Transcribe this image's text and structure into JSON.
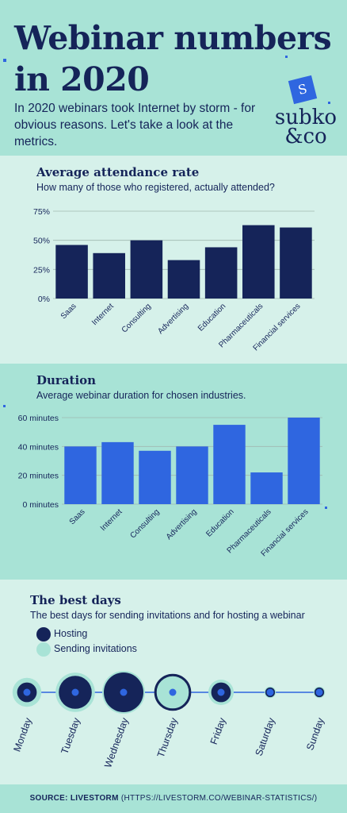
{
  "header": {
    "title_line1": "Webinar numbers",
    "title_line2": "in 2020",
    "subtitle": "In 2020 webinars took Internet by storm - for obvious reasons. Let's take a look at the metrics.",
    "logo_mark": "S",
    "logo_line1": "subko",
    "logo_line2": "&co"
  },
  "attendance": {
    "title": "Average attendance rate",
    "subtitle": "How many of those who registered, actually attended?"
  },
  "duration": {
    "title": "Duration",
    "subtitle": "Average webinar duration for chosen industries."
  },
  "best_days": {
    "title": "The best days",
    "subtitle": "The best days for sending invitations and for hosting a webinar",
    "legend_hosting": "Hosting",
    "legend_sending": "Sending invitations"
  },
  "footer": {
    "source_label": "SOURCE: LIVESTORM",
    "source_url": "(HTTPS://LIVESTORM.CO/WEBINAR-STATISTICS/)"
  },
  "colors": {
    "navy": "#152459",
    "blue": "#2f66e0",
    "mint": "#a8e3d6",
    "light_mint": "#d6f1ea"
  },
  "chart_data": [
    {
      "type": "bar",
      "categories": [
        "Saas",
        "Internet",
        "Consulting",
        "Advertising",
        "Education",
        "Pharmaceuticals",
        "Financial services"
      ],
      "values": [
        46,
        39,
        50,
        33,
        44,
        63,
        61
      ],
      "ylim": [
        0,
        75
      ],
      "yticks": [
        "0%",
        "25%",
        "50%",
        "75%"
      ],
      "ytick_values": [
        0,
        25,
        50,
        75
      ],
      "grid": true,
      "color": "#152459"
    },
    {
      "type": "bar",
      "categories": [
        "Saas",
        "Internet",
        "Consulting",
        "Advertising",
        "Education",
        "Pharmaceuticals",
        "Financial services"
      ],
      "values": [
        40,
        43,
        37,
        40,
        55,
        22,
        60
      ],
      "ylim": [
        0,
        60
      ],
      "yticks": [
        "0 minutes",
        "20 minutes",
        "40 minutes",
        "60 minutes"
      ],
      "ytick_values": [
        0,
        20,
        40,
        60
      ],
      "grid": true,
      "color": "#2f66e0"
    },
    {
      "type": "scatter",
      "categories": [
        "Monday",
        "Tuesday",
        "Wednesday",
        "Thursday",
        "Friday",
        "Saturday",
        "Sunday"
      ],
      "series": [
        {
          "name": "Hosting",
          "values": [
            2,
            4,
            5,
            4,
            2,
            0.5,
            0.5
          ]
        },
        {
          "name": "Sending invitations",
          "values": [
            3,
            4.5,
            5,
            4,
            2.5,
            0.5,
            0.5
          ]
        }
      ]
    }
  ]
}
